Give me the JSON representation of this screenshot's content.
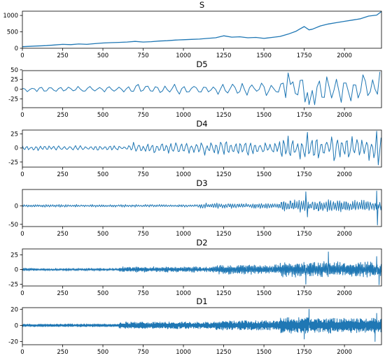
{
  "chart_data": [
    {
      "type": "line",
      "title": "S",
      "xlim": [
        0,
        2230
      ],
      "ylim": [
        0,
        1130
      ],
      "xticks": [
        0,
        250,
        500,
        750,
        1000,
        1250,
        1500,
        1750,
        2000
      ],
      "yticks": [
        0,
        500,
        1000
      ],
      "series": [
        {
          "kind": "trend",
          "x": [
            0,
            50,
            100,
            150,
            200,
            250,
            300,
            350,
            400,
            450,
            500,
            550,
            600,
            650,
            700,
            750,
            800,
            850,
            900,
            950,
            1000,
            1050,
            1100,
            1150,
            1200,
            1250,
            1300,
            1350,
            1400,
            1450,
            1500,
            1550,
            1600,
            1650,
            1700,
            1720,
            1750,
            1780,
            1800,
            1850,
            1900,
            1950,
            2000,
            2050,
            2100,
            2150,
            2200,
            2230
          ],
          "y": [
            50,
            60,
            70,
            80,
            100,
            120,
            110,
            130,
            120,
            140,
            160,
            170,
            180,
            190,
            210,
            190,
            200,
            220,
            230,
            250,
            260,
            270,
            280,
            300,
            320,
            380,
            340,
            350,
            320,
            330,
            300,
            330,
            360,
            430,
            520,
            580,
            660,
            560,
            580,
            680,
            740,
            780,
            820,
            860,
            900,
            980,
            1010,
            1120
          ]
        }
      ]
    },
    {
      "type": "line",
      "title": "D5",
      "xlim": [
        0,
        2230
      ],
      "ylim": [
        -48,
        48
      ],
      "xticks": [
        0,
        250,
        500,
        750,
        1000,
        1250,
        1500,
        1750,
        2000
      ],
      "yticks": [
        -25,
        0,
        25,
        50
      ],
      "series": [
        {
          "kind": "oscillation",
          "period": 60,
          "segments": [
            {
              "x0": 0,
              "x1": 600,
              "amp": 6
            },
            {
              "x0": 600,
              "x1": 1250,
              "amp": 11
            },
            {
              "x0": 1250,
              "x1": 1600,
              "amp": 16
            },
            {
              "x0": 1600,
              "x1": 2230,
              "amp": 34
            }
          ],
          "peaks": [
            {
              "x": 1650,
              "y": 42
            },
            {
              "x": 1780,
              "y": -40
            },
            {
              "x": 2220,
              "y": 45
            }
          ]
        }
      ]
    },
    {
      "type": "line",
      "title": "D4",
      "xlim": [
        0,
        2230
      ],
      "ylim": [
        -34,
        32
      ],
      "xticks": [
        0,
        250,
        500,
        750,
        1000,
        1250,
        1500,
        1750,
        2000
      ],
      "yticks": [
        -25,
        0,
        25
      ],
      "series": [
        {
          "kind": "oscillation",
          "period": 30,
          "segments": [
            {
              "x0": 0,
              "x1": 650,
              "amp": 4
            },
            {
              "x0": 650,
              "x1": 1100,
              "amp": 9
            },
            {
              "x0": 1100,
              "x1": 1600,
              "amp": 11
            },
            {
              "x0": 1600,
              "x1": 2230,
              "amp": 20
            }
          ],
          "peaks": [
            {
              "x": 1770,
              "y": 28
            },
            {
              "x": 2200,
              "y": 30
            },
            {
              "x": 2210,
              "y": -30
            }
          ]
        }
      ]
    },
    {
      "type": "line",
      "title": "D3",
      "xlim": [
        0,
        2230
      ],
      "ylim": [
        -56,
        44
      ],
      "xticks": [
        0,
        250,
        500,
        750,
        1000,
        1250,
        1500,
        1750,
        2000
      ],
      "yticks": [
        -50,
        0
      ],
      "series": [
        {
          "kind": "oscillation",
          "period": 14,
          "segments": [
            {
              "x0": 0,
              "x1": 1100,
              "amp": 3
            },
            {
              "x0": 1100,
              "x1": 1600,
              "amp": 6
            },
            {
              "x0": 1600,
              "x1": 2230,
              "amp": 14
            }
          ],
          "peaks": [
            {
              "x": 1760,
              "y": 38
            },
            {
              "x": 1770,
              "y": -30
            },
            {
              "x": 2200,
              "y": 40
            },
            {
              "x": 2205,
              "y": -52
            }
          ]
        }
      ]
    },
    {
      "type": "line",
      "title": "D2",
      "xlim": [
        0,
        2230
      ],
      "ylim": [
        -28,
        35
      ],
      "xticks": [
        0,
        250,
        500,
        750,
        1000,
        1250,
        1500,
        1750,
        2000
      ],
      "yticks": [
        -25,
        0,
        25
      ],
      "series": [
        {
          "kind": "oscillation",
          "period": 7,
          "segments": [
            {
              "x0": 0,
              "x1": 600,
              "amp": 2
            },
            {
              "x0": 600,
              "x1": 1200,
              "amp": 4
            },
            {
              "x0": 1200,
              "x1": 1600,
              "amp": 7
            },
            {
              "x0": 1600,
              "x1": 2230,
              "amp": 11
            }
          ],
          "peaks": [
            {
              "x": 1900,
              "y": 30
            },
            {
              "x": 1760,
              "y": -25
            },
            {
              "x": 2200,
              "y": 22
            },
            {
              "x": 2215,
              "y": -26
            }
          ]
        }
      ]
    },
    {
      "type": "line",
      "title": "D1",
      "xlim": [
        0,
        2230
      ],
      "ylim": [
        -24,
        22
      ],
      "xticks": [
        0,
        250,
        500,
        750,
        1000,
        1250,
        1500,
        1750,
        2000
      ],
      "yticks": [
        -20,
        0,
        20
      ],
      "series": [
        {
          "kind": "oscillation",
          "period": 4,
          "segments": [
            {
              "x0": 0,
              "x1": 600,
              "amp": 1.5
            },
            {
              "x0": 600,
              "x1": 1200,
              "amp": 3.5
            },
            {
              "x0": 1200,
              "x1": 1600,
              "amp": 5
            },
            {
              "x0": 1600,
              "x1": 2230,
              "amp": 8
            }
          ],
          "peaks": [
            {
              "x": 1780,
              "y": 20
            },
            {
              "x": 1750,
              "y": -17
            },
            {
              "x": 2190,
              "y": -20
            },
            {
              "x": 2200,
              "y": 15
            }
          ]
        }
      ]
    }
  ],
  "colors": {
    "line": "#1f77b4",
    "axis": "#000000"
  }
}
